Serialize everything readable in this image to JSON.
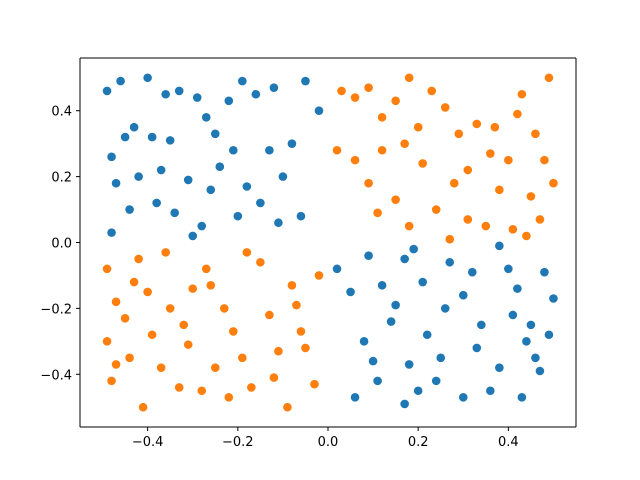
{
  "chart_data": {
    "type": "scatter",
    "xlim": [
      -0.55,
      0.55
    ],
    "ylim": [
      -0.56,
      0.56
    ],
    "xticks": [
      {
        "value": -0.4,
        "label": "−0.4"
      },
      {
        "value": -0.2,
        "label": "−0.2"
      },
      {
        "value": 0,
        "label": "0.0"
      },
      {
        "value": 0.2,
        "label": "0.2"
      },
      {
        "value": 0.4,
        "label": "0.4"
      }
    ],
    "yticks": [
      {
        "value": -0.4,
        "label": "−0.4"
      },
      {
        "value": -0.2,
        "label": "−0.2"
      },
      {
        "value": 0,
        "label": "0.0"
      },
      {
        "value": 0.2,
        "label": "0.2"
      },
      {
        "value": 0.4,
        "label": "0.4"
      }
    ],
    "series": [
      {
        "color": "#1f77b4",
        "x": [
          -0.49,
          -0.46,
          -0.4,
          -0.43,
          -0.45,
          -0.48,
          -0.42,
          -0.47,
          -0.39,
          -0.36,
          -0.33,
          -0.35,
          -0.37,
          -0.38,
          -0.34,
          -0.31,
          -0.29,
          -0.27,
          -0.25,
          -0.22,
          -0.19,
          -0.21,
          -0.24,
          -0.26,
          -0.28,
          -0.3,
          -0.16,
          -0.12,
          -0.13,
          -0.15,
          -0.18,
          -0.1,
          -0.08,
          -0.05,
          -0.02,
          -0.06,
          -0.11,
          -0.2,
          -0.44,
          -0.48,
          0.02,
          0.05,
          0.08,
          0.06,
          0.11,
          0.14,
          0.12,
          0.17,
          0.19,
          0.21,
          0.18,
          0.17,
          0.22,
          0.25,
          0.27,
          0.3,
          0.32,
          0.3,
          0.34,
          0.36,
          0.38,
          0.4,
          0.41,
          0.44,
          0.43,
          0.46,
          0.48,
          0.49,
          0.5,
          0.47,
          0.38,
          0.09,
          0.24,
          0.15,
          0.33,
          0.26,
          0.45,
          0.1,
          0.2,
          0.42
        ],
        "values": [
          0.46,
          0.49,
          0.5,
          0.35,
          0.32,
          0.26,
          0.2,
          0.18,
          0.32,
          0.45,
          0.46,
          0.31,
          0.22,
          0.12,
          0.09,
          0.19,
          0.44,
          0.38,
          0.33,
          0.43,
          0.49,
          0.28,
          0.23,
          0.16,
          0.05,
          0.02,
          0.45,
          0.47,
          0.28,
          0.12,
          0.17,
          0.2,
          0.3,
          0.49,
          0.4,
          0.08,
          0.06,
          0.08,
          0.1,
          0.03,
          -0.08,
          -0.15,
          -0.3,
          -0.47,
          -0.42,
          -0.24,
          -0.13,
          -0.05,
          -0.02,
          -0.12,
          -0.37,
          -0.49,
          -0.28,
          -0.35,
          -0.06,
          -0.16,
          -0.09,
          -0.47,
          -0.25,
          -0.45,
          -0.38,
          -0.08,
          -0.22,
          -0.3,
          -0.47,
          -0.35,
          -0.09,
          -0.28,
          -0.17,
          -0.39,
          -0.01,
          -0.04,
          -0.42,
          -0.19,
          -0.32,
          -0.2,
          -0.25,
          -0.36,
          -0.45,
          -0.14
        ]
      },
      {
        "color": "#ff7f0e",
        "x": [
          0.03,
          0.06,
          0.09,
          0.12,
          0.15,
          0.18,
          0.2,
          0.23,
          0.26,
          0.29,
          0.31,
          0.33,
          0.37,
          0.4,
          0.43,
          0.46,
          0.49,
          0.48,
          0.5,
          0.45,
          0.41,
          0.44,
          0.38,
          0.35,
          0.31,
          0.28,
          0.24,
          0.21,
          0.18,
          0.15,
          0.12,
          0.09,
          0.06,
          0.02,
          0.11,
          0.17,
          0.27,
          0.36,
          0.42,
          0.47,
          -0.49,
          -0.47,
          -0.49,
          -0.47,
          -0.48,
          -0.44,
          -0.45,
          -0.43,
          -0.4,
          -0.39,
          -0.41,
          -0.37,
          -0.35,
          -0.33,
          -0.31,
          -0.3,
          -0.28,
          -0.27,
          -0.25,
          -0.23,
          -0.21,
          -0.19,
          -0.17,
          -0.15,
          -0.13,
          -0.11,
          -0.09,
          -0.08,
          -0.06,
          -0.03,
          -0.02,
          -0.36,
          -0.22,
          -0.26,
          -0.12,
          -0.05,
          -0.18,
          -0.32,
          -0.42,
          -0.07
        ],
        "values": [
          0.46,
          0.44,
          0.47,
          0.38,
          0.43,
          0.5,
          0.35,
          0.46,
          0.41,
          0.33,
          0.22,
          0.36,
          0.35,
          0.25,
          0.45,
          0.33,
          0.5,
          0.25,
          0.18,
          0.14,
          0.04,
          0.02,
          0.16,
          0.05,
          0.07,
          0.18,
          0.1,
          0.24,
          0.05,
          0.13,
          0.28,
          0.18,
          0.25,
          0.28,
          0.09,
          0.3,
          0.01,
          0.27,
          0.39,
          0.07,
          -0.08,
          -0.18,
          -0.3,
          -0.37,
          -0.42,
          -0.35,
          -0.23,
          -0.12,
          -0.15,
          -0.28,
          -0.5,
          -0.38,
          -0.2,
          -0.44,
          -0.31,
          -0.14,
          -0.45,
          -0.08,
          -0.38,
          -0.2,
          -0.27,
          -0.35,
          -0.44,
          -0.06,
          -0.22,
          -0.33,
          -0.5,
          -0.13,
          -0.27,
          -0.43,
          -0.1,
          -0.03,
          -0.47,
          -0.13,
          -0.41,
          -0.32,
          -0.03,
          -0.25,
          -0.05,
          -0.19
        ]
      }
    ]
  }
}
